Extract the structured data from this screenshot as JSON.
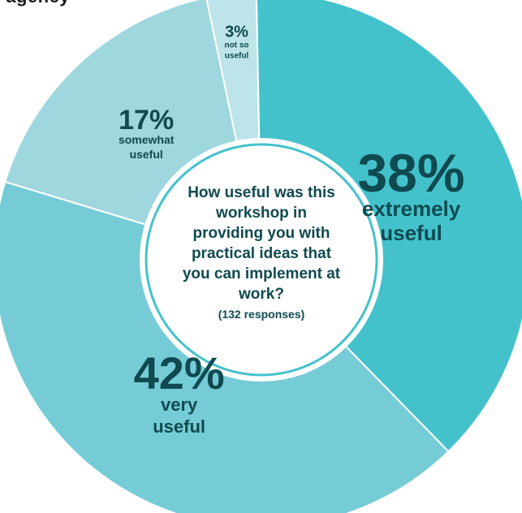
{
  "top_fragment": ", agency",
  "center": {
    "question": "How useful was this workshop in providing you with practical ideas that you can implement at work?",
    "responses": "(132 responses)"
  },
  "colors": {
    "extremely": "#43c2cc",
    "very": "#76ccd6",
    "somewhat": "#9ed7de",
    "not_so": "#bde4e8",
    "text": "#0f4a50",
    "ring": "#43c2cc"
  },
  "chart_data": {
    "type": "pie",
    "style": "donut",
    "title": "How useful was this workshop in providing you with practical ideas that you can implement at work?",
    "responses": 132,
    "slices": [
      {
        "label": "extremely useful",
        "value": 38,
        "pct_text": "38%",
        "color": "#43c2cc"
      },
      {
        "label": "very useful",
        "value": 42,
        "pct_text": "42%",
        "color": "#76ccd6"
      },
      {
        "label": "somewhat useful",
        "value": 17,
        "pct_text": "17%",
        "color": "#9ed7de"
      },
      {
        "label": "not so useful",
        "value": 3,
        "pct_text": "3%",
        "color": "#bde4e8"
      }
    ]
  }
}
